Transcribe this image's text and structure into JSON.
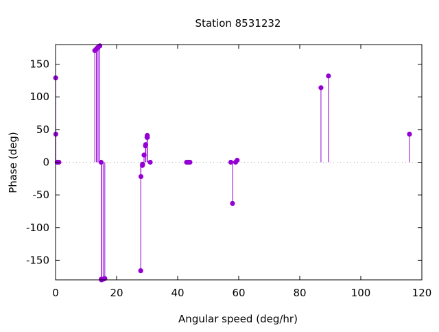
{
  "chart_data": {
    "type": "scatter",
    "style": "impulses-with-points",
    "title": "Station 8531232",
    "xlabel": "Angular speed (deg/hr)",
    "ylabel": "Phase (deg)",
    "xlim": [
      0,
      120
    ],
    "ylim": [
      -180,
      180
    ],
    "xticks": [
      0,
      20,
      40,
      60,
      80,
      100,
      120
    ],
    "yticks": [
      -150,
      -100,
      -50,
      0,
      50,
      100,
      150
    ],
    "zero_line": true,
    "grid": false,
    "color": "#9400d3",
    "series": [
      {
        "name": "Phase",
        "x": [
          0.04,
          0.08,
          0.54,
          1.1,
          12.85,
          13.4,
          13.47,
          13.94,
          14.5,
          14.92,
          14.96,
          15.04,
          15.59,
          16.14,
          27.9,
          27.97,
          28.44,
          28.51,
          28.98,
          29.46,
          29.53,
          29.96,
          30.0,
          30.04,
          30.08,
          31.02,
          42.93,
          43.48,
          44.03,
          57.42,
          57.97,
          58.98,
          59.5,
          86.95,
          89.4,
          115.94
        ],
        "y": [
          129,
          43,
          0,
          0,
          171,
          173,
          174,
          176,
          178,
          0,
          -179,
          -180,
          -179,
          -178,
          -166,
          -22,
          -5,
          -3,
          11,
          25,
          27,
          38,
          40,
          41,
          38,
          0,
          0,
          0,
          0,
          0,
          -63,
          0,
          3,
          114,
          132,
          43
        ]
      }
    ]
  }
}
